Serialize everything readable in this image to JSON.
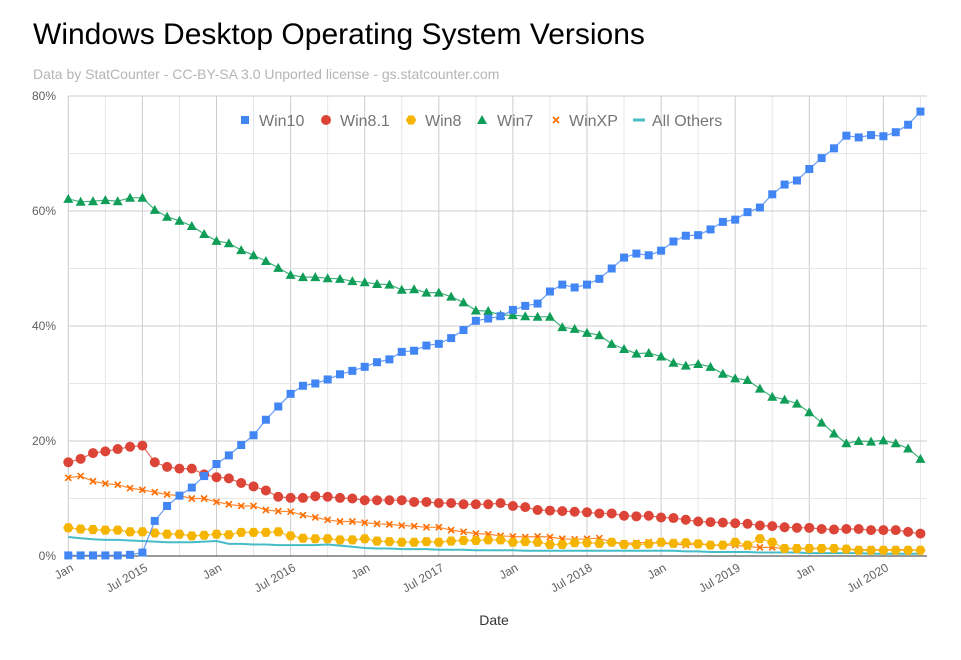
{
  "chart_data": {
    "type": "line",
    "title": "Windows Desktop Operating System Versions",
    "subtitle": "Data by StatCounter - CC-BY-SA 3.0 Unported license - gs.statcounter.com",
    "xlabel": "Date",
    "ylabel": "",
    "x_start": "2015-01",
    "x_end": "2020-10",
    "x_interval": "monthly",
    "x_tick_labels": [
      "Jan",
      "Jul 2015",
      "Jan",
      "Jul 2016",
      "Jan",
      "Jul 2017",
      "Jan",
      "Jul 2018",
      "Jan",
      "Jul 2019",
      "Jan",
      "Jul 2020"
    ],
    "y_tick_labels": [
      "0%",
      "20%",
      "40%",
      "60%",
      "80%"
    ],
    "ylim": [
      0,
      80
    ],
    "y_unit": "%",
    "grid": true,
    "legend_position": "top",
    "series": [
      {
        "name": "Win10",
        "color": "#4285F4",
        "marker": "square",
        "values": [
          0.1,
          0.1,
          0.1,
          0.1,
          0.1,
          0.2,
          0.6,
          6.1,
          8.7,
          10.5,
          11.9,
          13.9,
          16.0,
          17.5,
          19.3,
          21.0,
          23.7,
          26.0,
          28.2,
          29.6,
          30.0,
          30.7,
          31.6,
          32.2,
          32.9,
          33.7,
          34.2,
          35.5,
          35.7,
          36.6,
          36.9,
          37.9,
          39.3,
          40.9,
          41.3,
          41.7,
          42.8,
          43.5,
          43.9,
          46.0,
          47.2,
          46.7,
          47.2,
          48.2,
          50.0,
          51.9,
          52.6,
          52.3,
          53.1,
          54.7,
          55.7,
          55.8,
          56.8,
          58.1,
          58.5,
          59.8,
          60.6,
          62.9,
          64.6,
          65.3,
          67.3,
          69.2,
          70.9,
          73.1,
          72.8,
          73.2,
          73.0,
          73.7,
          75.0,
          77.3
        ]
      },
      {
        "name": "Win8.1",
        "color": "#DB4437",
        "marker": "circle",
        "values": [
          16.3,
          16.9,
          17.9,
          18.2,
          18.6,
          19.0,
          19.2,
          16.3,
          15.5,
          15.2,
          15.2,
          14.2,
          13.7,
          13.5,
          12.7,
          12.1,
          11.4,
          10.3,
          10.1,
          10.1,
          10.4,
          10.3,
          10.1,
          10.0,
          9.7,
          9.7,
          9.7,
          9.7,
          9.4,
          9.4,
          9.2,
          9.2,
          9.0,
          9.0,
          9.0,
          9.2,
          8.7,
          8.5,
          8.0,
          7.9,
          7.8,
          7.7,
          7.6,
          7.4,
          7.4,
          7.0,
          6.9,
          7.0,
          6.7,
          6.6,
          6.3,
          6.0,
          5.9,
          5.8,
          5.7,
          5.6,
          5.3,
          5.2,
          5.0,
          4.9,
          4.9,
          4.7,
          4.6,
          4.7,
          4.7,
          4.5,
          4.5,
          4.5,
          4.2,
          3.9
        ]
      },
      {
        "name": "Win8",
        "color": "#F4B400",
        "marker": "hexagon",
        "values": [
          4.9,
          4.7,
          4.6,
          4.5,
          4.5,
          4.2,
          4.2,
          4.0,
          3.8,
          3.8,
          3.5,
          3.6,
          3.8,
          3.7,
          4.1,
          4.1,
          4.1,
          4.2,
          3.5,
          3.1,
          3.0,
          3.0,
          2.8,
          2.8,
          3.0,
          2.6,
          2.5,
          2.4,
          2.4,
          2.5,
          2.4,
          2.6,
          2.7,
          2.7,
          2.8,
          2.8,
          2.4,
          2.5,
          2.4,
          2.0,
          2.0,
          2.3,
          2.3,
          2.2,
          2.4,
          2.0,
          2.0,
          2.1,
          2.4,
          2.2,
          2.3,
          2.1,
          1.9,
          1.9,
          2.4,
          1.9,
          3.0,
          2.4,
          1.3,
          1.3,
          1.3,
          1.3,
          1.3,
          1.2,
          1.0,
          1.0,
          1.0,
          1.0,
          1.0,
          1.0
        ]
      },
      {
        "name": "Win7",
        "color": "#0F9D58",
        "marker": "triangle",
        "values": [
          62.1,
          61.6,
          61.7,
          61.9,
          61.7,
          62.3,
          62.3,
          60.2,
          59.0,
          58.3,
          57.4,
          56.0,
          54.8,
          54.4,
          53.2,
          52.3,
          51.3,
          50.1,
          48.9,
          48.5,
          48.5,
          48.3,
          48.2,
          47.8,
          47.6,
          47.3,
          47.2,
          46.3,
          46.4,
          45.8,
          45.8,
          45.1,
          44.1,
          42.7,
          42.6,
          41.9,
          41.9,
          41.7,
          41.6,
          41.6,
          39.8,
          39.5,
          38.8,
          38.4,
          36.9,
          36.0,
          35.2,
          35.3,
          34.7,
          33.6,
          33.1,
          33.4,
          32.9,
          31.7,
          30.9,
          30.6,
          29.1,
          27.7,
          27.2,
          26.5,
          25.0,
          23.2,
          21.3,
          19.6,
          20.0,
          19.9,
          20.1,
          19.6,
          18.7,
          16.9
        ]
      },
      {
        "name": "WinXP",
        "color": "#FF6D00",
        "marker": "x",
        "values": [
          13.6,
          13.9,
          13.0,
          12.6,
          12.4,
          11.8,
          11.5,
          11.1,
          10.7,
          10.5,
          10.0,
          10.0,
          9.4,
          9.0,
          8.7,
          8.7,
          8.0,
          7.8,
          7.7,
          7.1,
          6.7,
          6.3,
          6.0,
          6.0,
          5.8,
          5.6,
          5.5,
          5.3,
          5.2,
          5.0,
          5.0,
          4.5,
          4.2,
          3.9,
          3.8,
          3.5,
          3.4,
          3.3,
          3.4,
          3.3,
          3.0,
          2.9,
          3.0,
          3.1,
          2.4,
          2.2,
          2.3,
          2.4,
          2.2,
          2.1,
          1.9,
          2.2,
          1.9,
          1.9,
          1.9,
          1.6,
          1.5,
          1.5,
          1.3,
          1.3,
          1.3,
          1.3,
          1.3,
          1.2,
          1.1,
          1.1,
          1.1,
          1.1,
          1.1,
          1.0
        ]
      },
      {
        "name": "All Others",
        "color": "#46BDC6",
        "marker": "line",
        "values": [
          3.3,
          3.1,
          2.9,
          2.8,
          2.8,
          2.7,
          2.6,
          2.5,
          2.4,
          2.4,
          2.4,
          2.5,
          2.6,
          2.1,
          2.1,
          2.0,
          2.0,
          1.9,
          1.9,
          1.9,
          1.9,
          2.0,
          1.8,
          1.6,
          1.4,
          1.3,
          1.3,
          1.2,
          1.2,
          1.2,
          1.1,
          1.1,
          1.1,
          1.0,
          1.0,
          1.0,
          1.0,
          0.9,
          0.9,
          0.9,
          0.9,
          0.9,
          0.9,
          0.9,
          0.9,
          0.9,
          0.9,
          0.9,
          0.9,
          0.9,
          0.8,
          0.8,
          0.7,
          0.7,
          0.7,
          0.7,
          0.6,
          0.6,
          0.6,
          0.6,
          0.5,
          0.5,
          0.5,
          0.5,
          0.5,
          0.4,
          0.4,
          0.4,
          0.4,
          0.4
        ]
      }
    ]
  }
}
